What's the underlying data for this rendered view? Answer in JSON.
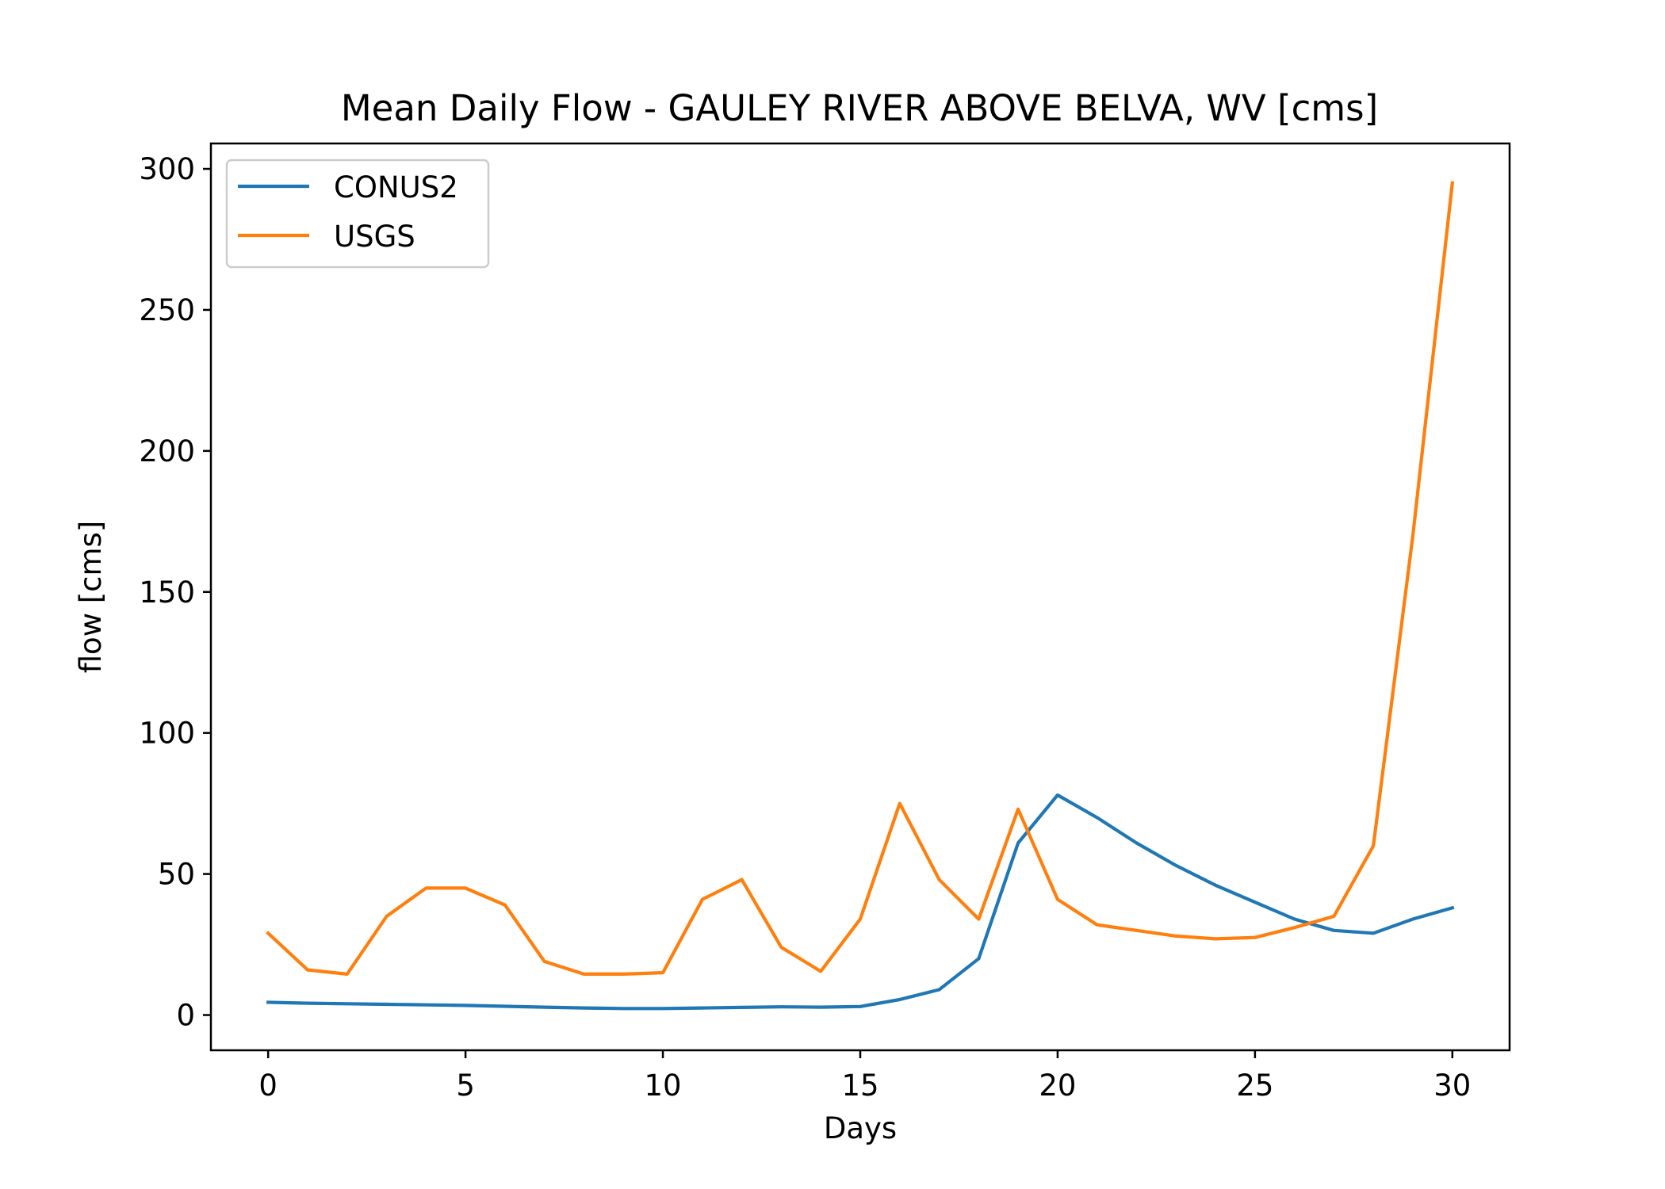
{
  "chart_data": {
    "type": "line",
    "title": "Mean Daily Flow - GAULEY RIVER ABOVE BELVA, WV [cms]",
    "xlabel": "Days",
    "ylabel": "flow [cms]",
    "xlim": [
      -1.45,
      31.45
    ],
    "ylim": [
      -12.5,
      309
    ],
    "xticks": [
      0,
      5,
      10,
      15,
      20,
      25,
      30
    ],
    "yticks": [
      0,
      50,
      100,
      150,
      200,
      250,
      300
    ],
    "grid": false,
    "legend": "top-left",
    "x": [
      0,
      1,
      2,
      3,
      4,
      5,
      6,
      7,
      8,
      9,
      10,
      11,
      12,
      13,
      14,
      15,
      16,
      17,
      18,
      19,
      20,
      21,
      22,
      23,
      24,
      25,
      26,
      27,
      28,
      29,
      30
    ],
    "series": [
      {
        "name": "CONUS2",
        "color": "#1f77b4",
        "values": [
          4.5,
          4.2,
          4.0,
          3.8,
          3.6,
          3.4,
          3.1,
          2.8,
          2.5,
          2.3,
          2.3,
          2.5,
          2.7,
          2.9,
          2.8,
          3.0,
          5.5,
          9.0,
          20.0,
          61.0,
          78.0,
          70.0,
          61.0,
          53.0,
          46.0,
          40.0,
          34.0,
          30.0,
          29.0,
          34.0,
          38.0
        ]
      },
      {
        "name": "USGS",
        "color": "#ff7f0e",
        "values": [
          29.0,
          16.0,
          14.5,
          35.0,
          45.0,
          45.0,
          39.0,
          19.0,
          14.5,
          14.5,
          15.0,
          41.0,
          48.0,
          24.0,
          15.5,
          34.0,
          75.0,
          48.0,
          34.0,
          73.0,
          41.0,
          32.0,
          30.0,
          28.0,
          27.0,
          27.5,
          31.0,
          35.0,
          60.0,
          170.0,
          295.0
        ]
      }
    ]
  }
}
